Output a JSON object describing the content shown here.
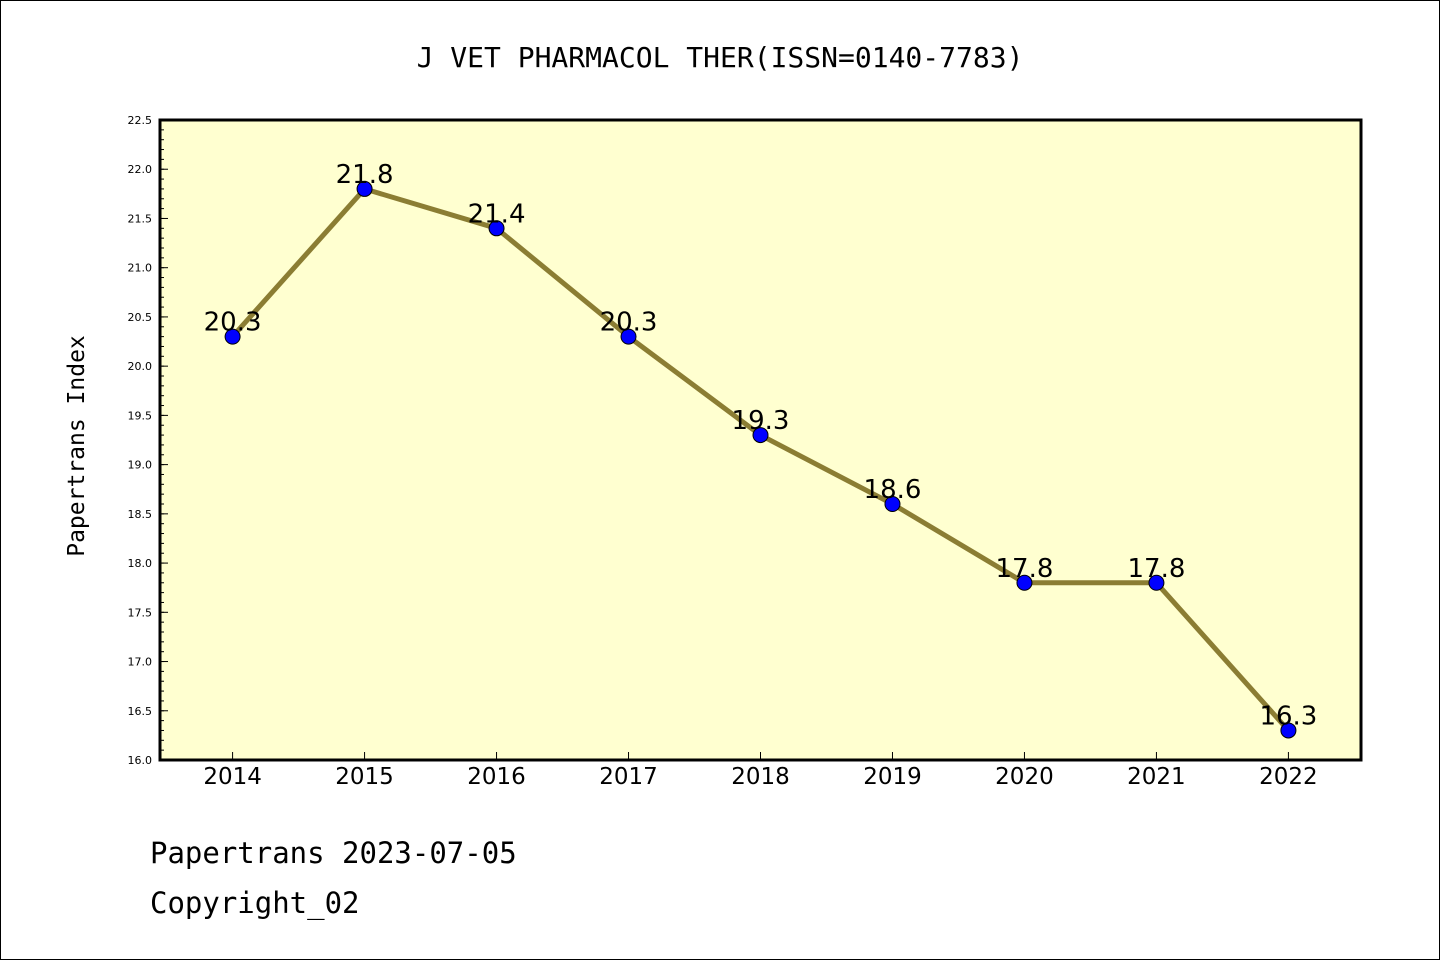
{
  "footer": {
    "line1": "Papertrans 2023-07-05",
    "line2": "Copyright_02"
  },
  "chart_data": {
    "type": "line",
    "title": "J VET PHARMACOL THER(ISSN=0140-7783)",
    "xlabel": "",
    "ylabel": "Papertrans Index",
    "categories": [
      "2014",
      "2015",
      "2016",
      "2017",
      "2018",
      "2019",
      "2020",
      "2021",
      "2022"
    ],
    "series": [
      {
        "values": [
          20.3,
          21.8,
          21.4,
          20.3,
          19.3,
          18.6,
          17.8,
          17.8,
          16.3
        ],
        "labels": [
          "20.3",
          "21.8",
          "21.4",
          "20.3",
          "19.3",
          "18.6",
          "17.8",
          "17.8",
          "16.3"
        ]
      }
    ],
    "ylim": [
      16.0,
      22.5
    ],
    "yticks": [
      "16.0",
      "16.5",
      "17.0",
      "17.5",
      "18.0",
      "18.5",
      "19.0",
      "19.5",
      "20.0",
      "20.5",
      "21.0",
      "21.5",
      "22.0",
      "22.5"
    ],
    "grid": false,
    "legend": "none",
    "colors": {
      "plot_background": "#ffffd0",
      "line": "#8b7d33",
      "marker": "#0000ff",
      "axis": "#000000"
    }
  }
}
